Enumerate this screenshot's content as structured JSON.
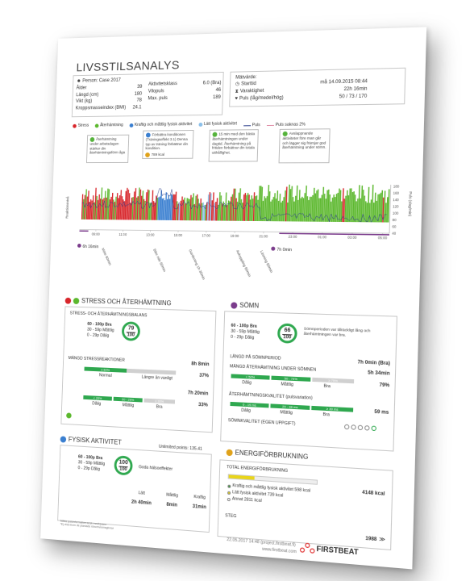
{
  "header": {
    "title": "LIVSSTILSANALYS",
    "person_label": "Person: Case 2017",
    "fields_left": [
      {
        "label": "Ålder",
        "value": "39"
      },
      {
        "label": "Längd (cm)",
        "value": "180"
      },
      {
        "label": "Vikt (kg)",
        "value": "78"
      },
      {
        "label": "Kroppsmasseindex (BMI)",
        "value": "24.1"
      }
    ],
    "fields_mid": [
      {
        "label": "Aktivitetsklass",
        "value": "6.0 (Bra)"
      },
      {
        "label": "Vilopuls",
        "value": "46"
      },
      {
        "label": "Max. puls",
        "value": "189"
      }
    ],
    "measure_title": "Mätvärde:",
    "measure": [
      {
        "label": "Starttid",
        "value": "må 14.09.2015 08:44"
      },
      {
        "label": "Varaktighet",
        "value": "22h 16min"
      },
      {
        "label": "Puls (låg/medel/hög)",
        "value": "50 / 73 / 170"
      }
    ]
  },
  "legend": [
    {
      "label": "Stress",
      "color": "#d8262b"
    },
    {
      "label": "Återhämtning",
      "color": "#5cb82e"
    },
    {
      "label": "Kraftig och måttlig fysisk aktivitet",
      "color": "#3a7fd0"
    },
    {
      "label": "Lätt fysisk aktivitet",
      "color": "#8cc0ea"
    },
    {
      "label": "Puls",
      "color": "#2c3e8c"
    },
    {
      "label": "Puls saknas 2%",
      "color": "#e08fa8"
    }
  ],
  "notes": [
    "Återhämtning under arbetsdagen stärker din återhämtningsförm åga",
    "Förbättra konditionen (Träningseffekt 3.1) Denna typ av träning förbättrar din kondition.",
    "15 min med den bästa återhämtningen under dagtid. Återhämtning på fritiden förbättrar din totala utthållighet.",
    "Avslappnande aktiviteter före man går och lägger sig främjar god återhämtning under sömn."
  ],
  "note_kcal": "789 kcal",
  "chart_data": {
    "type": "area",
    "title": "",
    "ylabel_left": "Reaktionsnivå",
    "ylabel_right": "Puls (slag/min)",
    "right_ticks": [
      "180",
      "160",
      "140",
      "120",
      "100",
      "80",
      "60",
      "40"
    ],
    "x_ticks": [
      "09:00",
      "11:00",
      "13:00",
      "15:00",
      "17:00",
      "19:00",
      "21:00",
      "23:00",
      "01:00",
      "03:00",
      "05:00"
    ],
    "events": [
      "Möte 60min",
      "Bike ride 60min",
      "Gardening 1h 30min",
      "Avkoppling 60min",
      "Läsning 60min"
    ],
    "sleep_markers": [
      "6h 16min",
      "7h 0min"
    ]
  },
  "stress": {
    "heading": "STRESS OCH ÅTERHÄMTNING",
    "balance_title": "STRESS- OCH ÅTERHÄMTNINGSBALANS",
    "scale": [
      "60 - 100p Bra",
      "30 - 59p Måttlig",
      "0 - 29p Dålig"
    ],
    "score": "79",
    "score_max": "100",
    "reaction_title": "MÄNGD STRESSREAKTIONER",
    "reaction_value": "8h 8min",
    "reaction_pct": "37%",
    "reaction_seg1": "≤ 60%",
    "reaction_labels": [
      "Normal",
      "Längre än vanligt"
    ],
    "recovery_value": "7h 20min",
    "recovery_pct": "33%",
    "recovery_segs": [
      "< 20%",
      "20 - 29%",
      "≥ 30%"
    ],
    "recovery_labels": [
      "Dålig",
      "Måttlig",
      "Bra"
    ]
  },
  "sleep": {
    "heading": "SÖMN",
    "scale": [
      "60 - 100p Bra",
      "30 - 59p Måttlig",
      "0 - 29p Dålig"
    ],
    "score": "66",
    "score_max": "100",
    "description": "Sömnperioden var tillräckligt lång och återhämtningen var bra.",
    "length_label": "LÄNGD PÅ SÖMNPERIOD",
    "length_value": "7h 0min (Bra)",
    "recovery_label": "MÄNGD ÅTERHÄMTNING UNDER SÖMNEN",
    "recovery_value": "5h 34min",
    "recovery_pct": "79%",
    "recovery_segs": [
      "< 50%",
      "50 - 74%",
      "≥ 75%"
    ],
    "recovery_labels": [
      "Dålig",
      "Måttlig",
      "Bra"
    ],
    "quality_label": "ÅTERHÄMTNINGSKVALITET (pulsvariation)",
    "quality_value": "59 ms",
    "quality_segs": [
      "0 - 19 ms",
      "20 - 38 ms",
      "≥ 39 ms"
    ],
    "quality_labels": [
      "Dålig",
      "Måttlig",
      "Bra"
    ],
    "subjective_label": "SÖMNKVALITET (EGEN UPPGIFT)"
  },
  "activity": {
    "heading": "FYSISK AKTIVITET",
    "points": "Unlimited points: 135.41",
    "scale": [
      "60 - 100p Bra",
      "30 - 59p Måttlig",
      "0 - 29p Dålig"
    ],
    "score": "100",
    "score_max": "100",
    "effect": "Goda hälsoeffekter",
    "cols": [
      {
        "label": "Lätt",
        "value": "2h 40min"
      },
      {
        "label": "Måttlig",
        "value": "8min"
      },
      {
        "label": "Kraftig",
        "value": "31min"
      }
    ]
  },
  "energy": {
    "heading": "ENERGIFÖRBRUKNING",
    "total_label": "TOTAL ENERGIFÖRBRUKNING",
    "total_value": "4148 kcal",
    "items": [
      {
        "label": "Kraftig och måttlig fysisk aktivitet 598 kcal",
        "color": "#3a9d3a"
      },
      {
        "label": "Lätt fysisk aktivitet 739 kcal",
        "color": "#e9d51a"
      },
      {
        "label": "Annat 2811 kcal",
        "color": "#ffffff"
      }
    ],
    "steps_label": "STEG",
    "steps_value": "1988"
  },
  "footer": {
    "timestamp": "22.05.2017 14:48 (project.firstbeat.fi)",
    "url": "www.firstbeat.com",
    "brand": "FIRSTBEAT",
    "note1": "Mätta pulsinformation ansk medhjusen",
    "note2": "*Ej visa inom de planlade röncmvremsgivnar"
  }
}
